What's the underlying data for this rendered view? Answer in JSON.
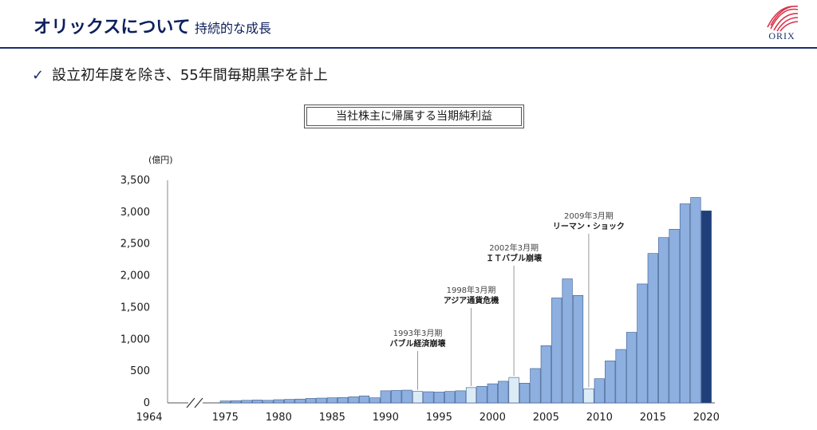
{
  "header": {
    "title": "オリックスについて",
    "subtitle": "持続的な成長",
    "logo_text": "ORIX"
  },
  "bullet": {
    "check": "✓",
    "text": "設立初年度を除き、55年間毎期黒字を計上"
  },
  "colors": {
    "bar": "#8eb0e0",
    "bar_light": "#dcecf7",
    "bar_latest": "#1f3f7a",
    "navy": "#1b2f6e",
    "logo_red": "#d9324a"
  },
  "chart_data": {
    "type": "bar",
    "title": "当社株主に帰属する当期純利益",
    "unit_label": "(億円)",
    "ylim": [
      0,
      3500
    ],
    "y_ticks": [
      0,
      500,
      1000,
      1500,
      2000,
      2500,
      3000,
      3500
    ],
    "y_tick_labels": [
      "0",
      "500",
      "1,000",
      "1,500",
      "2,000",
      "2,500",
      "3,000",
      "3,500"
    ],
    "x_tick_labels": [
      "1964",
      "1975",
      "1980",
      "1985",
      "1990",
      "1995",
      "2000",
      "2005",
      "2010",
      "2015",
      "2020"
    ],
    "axis_break": true,
    "years": [
      1975,
      1976,
      1977,
      1978,
      1979,
      1980,
      1981,
      1982,
      1983,
      1984,
      1985,
      1986,
      1987,
      1988,
      1989,
      1990,
      1991,
      1992,
      1993,
      1994,
      1995,
      1996,
      1997,
      1998,
      1999,
      2000,
      2001,
      2002,
      2003,
      2004,
      2005,
      2006,
      2007,
      2008,
      2009,
      2010,
      2011,
      2012,
      2013,
      2014,
      2015,
      2016,
      2017,
      2018,
      2019,
      2020
    ],
    "values": [
      30,
      35,
      40,
      45,
      40,
      50,
      55,
      60,
      70,
      75,
      80,
      85,
      95,
      110,
      80,
      190,
      195,
      200,
      180,
      175,
      170,
      180,
      190,
      240,
      260,
      300,
      340,
      400,
      310,
      540,
      900,
      1650,
      1950,
      1690,
      220,
      380,
      660,
      840,
      1110,
      1870,
      2350,
      2600,
      2730,
      3130,
      3230,
      3020
    ],
    "highlight": {
      "1993": "light",
      "1998": "light",
      "2002": "light",
      "2009": "light",
      "2020": "latest"
    },
    "annotations": [
      {
        "year": 1993,
        "date": "1993年3月期",
        "event": "バブル経済崩壊"
      },
      {
        "year": 1998,
        "date": "1998年3月期",
        "event": "アジア通貨危機"
      },
      {
        "year": 2002,
        "date": "2002年3月期",
        "event": "ＩＴバブル崩壊"
      },
      {
        "year": 2009,
        "date": "2009年3月期",
        "event": "リーマン・ショック"
      }
    ]
  }
}
